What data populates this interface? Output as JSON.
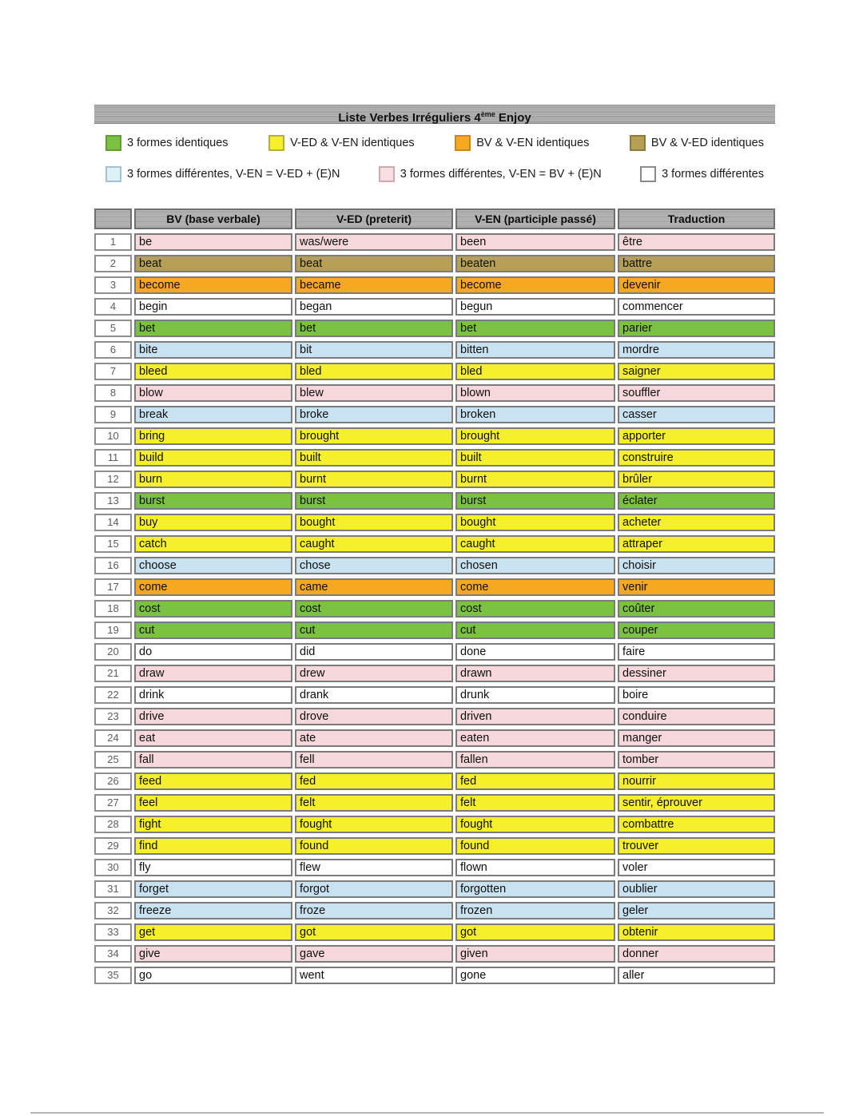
{
  "title": {
    "prefix": "Liste Verbes Irréguliers 4",
    "superscript": "ème",
    "suffix": " Enjoy"
  },
  "colors": {
    "green": "#7cc242",
    "yellow": "#f5ef2c",
    "orange": "#f6a821",
    "olive": "#b6a055",
    "blue": "#c9e2f1",
    "pink": "#f6d7db",
    "white": "#ffffff",
    "legend_blue": "#def1f7",
    "legend_pink": "#f8dee2"
  },
  "legend": {
    "row1": [
      {
        "key": "green",
        "swatch": "green",
        "label": "3 formes identiques"
      },
      {
        "key": "yellow",
        "swatch": "yellow",
        "label": "V-ED & V-EN identiques"
      },
      {
        "key": "orange",
        "swatch": "orange",
        "label": "BV & V-EN identiques"
      },
      {
        "key": "olive",
        "swatch": "olive",
        "label": "BV & V-ED identiques"
      }
    ],
    "row2": [
      {
        "key": "blue",
        "swatch": "legend_blue",
        "label": "3 formes différentes, V-EN = V-ED + (E)N"
      },
      {
        "key": "pink",
        "swatch": "legend_pink",
        "label": "3 formes différentes, V-EN = BV + (E)N"
      },
      {
        "key": "white",
        "swatch": "white",
        "label": "3 formes différentes"
      }
    ]
  },
  "table": {
    "headers": [
      "",
      "BV (base verbale)",
      "V-ED (preterit)",
      "V-EN (participle passé)",
      "Traduction"
    ],
    "rows": [
      {
        "num": "1",
        "bv": "be",
        "ved": "was/were",
        "ven": "been",
        "trad": "être",
        "color": "pink"
      },
      {
        "num": "2",
        "bv": "beat",
        "ved": "beat",
        "ven": "beaten",
        "trad": "battre",
        "color": "olive"
      },
      {
        "num": "3",
        "bv": "become",
        "ved": "became",
        "ven": "become",
        "trad": "devenir",
        "color": "orange"
      },
      {
        "num": "4",
        "bv": "begin",
        "ved": "began",
        "ven": "begun",
        "trad": "commencer",
        "color": "white"
      },
      {
        "num": "5",
        "bv": "bet",
        "ved": "bet",
        "ven": "bet",
        "trad": "parier",
        "color": "green"
      },
      {
        "num": "6",
        "bv": "bite",
        "ved": "bit",
        "ven": "bitten",
        "trad": "mordre",
        "color": "blue"
      },
      {
        "num": "7",
        "bv": "bleed",
        "ved": "bled",
        "ven": "bled",
        "trad": "saigner",
        "color": "yellow"
      },
      {
        "num": "8",
        "bv": "blow",
        "ved": "blew",
        "ven": "blown",
        "trad": "souffler",
        "color": "pink"
      },
      {
        "num": "9",
        "bv": "break",
        "ved": "broke",
        "ven": "broken",
        "trad": "casser",
        "color": "blue"
      },
      {
        "num": "10",
        "bv": "bring",
        "ved": "brought",
        "ven": "brought",
        "trad": "apporter",
        "color": "yellow"
      },
      {
        "num": "11",
        "bv": "build",
        "ved": "built",
        "ven": "built",
        "trad": "construire",
        "color": "yellow"
      },
      {
        "num": "12",
        "bv": "burn",
        "ved": "burnt",
        "ven": "burnt",
        "trad": "brûler",
        "color": "yellow"
      },
      {
        "num": "13",
        "bv": "burst",
        "ved": "burst",
        "ven": "burst",
        "trad": "éclater",
        "color": "green"
      },
      {
        "num": "14",
        "bv": "buy",
        "ved": "bought",
        "ven": "bought",
        "trad": "acheter",
        "color": "yellow"
      },
      {
        "num": "15",
        "bv": "catch",
        "ved": "caught",
        "ven": "caught",
        "trad": "attraper",
        "color": "yellow"
      },
      {
        "num": "16",
        "bv": "choose",
        "ved": "chose",
        "ven": "chosen",
        "trad": "choisir",
        "color": "blue"
      },
      {
        "num": "17",
        "bv": "come",
        "ved": "came",
        "ven": "come",
        "trad": "venir",
        "color": "orange"
      },
      {
        "num": "18",
        "bv": "cost",
        "ved": "cost",
        "ven": "cost",
        "trad": "coûter",
        "color": "green"
      },
      {
        "num": "19",
        "bv": "cut",
        "ved": "cut",
        "ven": "cut",
        "trad": "couper",
        "color": "green"
      },
      {
        "num": "20",
        "bv": "do",
        "ved": "did",
        "ven": "done",
        "trad": "faire",
        "color": "white"
      },
      {
        "num": "21",
        "bv": "draw",
        "ved": "drew",
        "ven": "drawn",
        "trad": "dessiner",
        "color": "pink"
      },
      {
        "num": "22",
        "bv": "drink",
        "ved": "drank",
        "ven": "drunk",
        "trad": "boire",
        "color": "white"
      },
      {
        "num": "23",
        "bv": "drive",
        "ved": "drove",
        "ven": "driven",
        "trad": "conduire",
        "color": "pink"
      },
      {
        "num": "24",
        "bv": "eat",
        "ved": "ate",
        "ven": "eaten",
        "trad": "manger",
        "color": "pink"
      },
      {
        "num": "25",
        "bv": "fall",
        "ved": "fell",
        "ven": "fallen",
        "trad": "tomber",
        "color": "pink"
      },
      {
        "num": "26",
        "bv": "feed",
        "ved": "fed",
        "ven": "fed",
        "trad": "nourrir",
        "color": "yellow"
      },
      {
        "num": "27",
        "bv": "feel",
        "ved": "felt",
        "ven": "felt",
        "trad": "sentir, éprouver",
        "color": "yellow"
      },
      {
        "num": "28",
        "bv": "fight",
        "ved": "fought",
        "ven": "fought",
        "trad": "combattre",
        "color": "yellow"
      },
      {
        "num": "29",
        "bv": "find",
        "ved": "found",
        "ven": "found",
        "trad": "trouver",
        "color": "yellow"
      },
      {
        "num": "30",
        "bv": "fly",
        "ved": "flew",
        "ven": "flown",
        "trad": "voler",
        "color": "white"
      },
      {
        "num": "31",
        "bv": "forget",
        "ved": "forgot",
        "ven": "forgotten",
        "trad": "oublier",
        "color": "blue"
      },
      {
        "num": "32",
        "bv": "freeze",
        "ved": "froze",
        "ven": "frozen",
        "trad": "geler",
        "color": "blue"
      },
      {
        "num": "33",
        "bv": "get",
        "ved": "got",
        "ven": "got",
        "trad": "obtenir",
        "color": "yellow"
      },
      {
        "num": "34",
        "bv": "give",
        "ved": "gave",
        "ven": "given",
        "trad": "donner",
        "color": "pink"
      },
      {
        "num": "35",
        "bv": "go",
        "ved": "went",
        "ven": "gone",
        "trad": "aller",
        "color": "white"
      }
    ]
  }
}
